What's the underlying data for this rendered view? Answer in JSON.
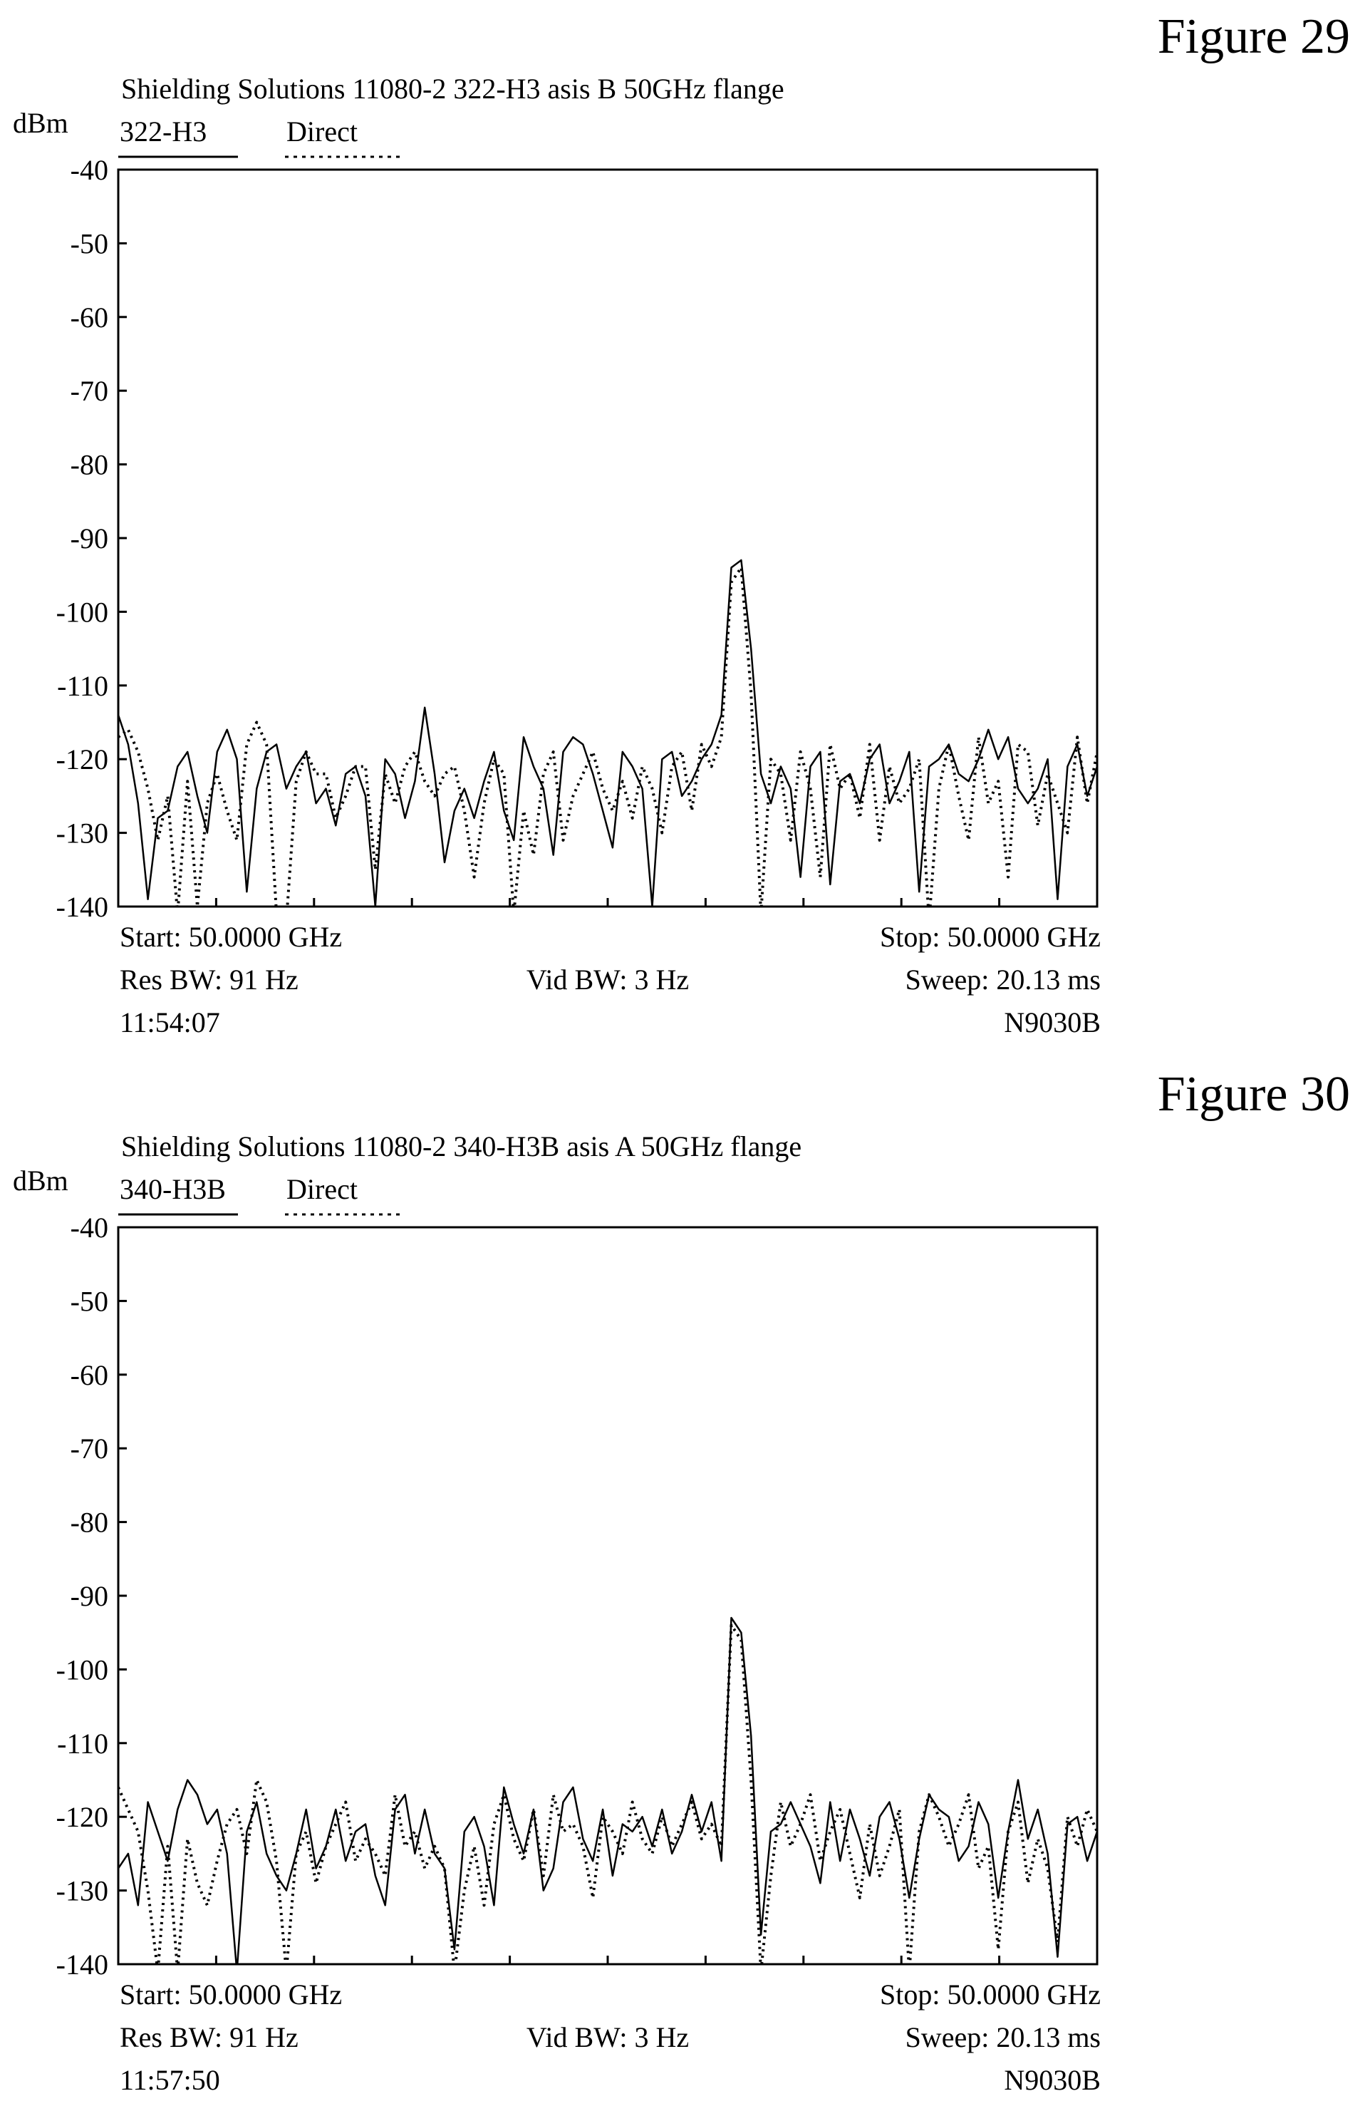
{
  "chart_data": [
    {
      "type": "line",
      "figure_label": "Figure  29",
      "title": "Shielding Solutions 11080-2  322-H3 asis B 50GHz flange",
      "ylabel": "dBm",
      "ylim": [
        -140,
        -40
      ],
      "y_ticks": [
        "-40",
        "-50",
        "-60",
        "-70",
        "-80",
        "-90",
        "-100",
        "-110",
        "-120",
        "-130",
        "-140"
      ],
      "grid": false,
      "legend_position": "top-left",
      "x_points": 100,
      "series": [
        {
          "name": "322-H3",
          "style": "solid",
          "values": [
            -114,
            -118,
            -126,
            -139,
            -128,
            -127,
            -121,
            -119,
            -125,
            -130,
            -119,
            -116,
            -120,
            -138,
            -124,
            -119,
            -118,
            -124,
            -121,
            -119,
            -126,
            -124,
            -129,
            -122,
            -121,
            -125,
            -140,
            -120,
            -122,
            -128,
            -123,
            -113,
            -122,
            -134,
            -127,
            -124,
            -128,
            -123,
            -119,
            -127,
            -131,
            -117,
            -121,
            -124,
            -133,
            -119,
            -117,
            -118,
            -122,
            -127,
            -132,
            -119,
            -121,
            -124,
            -140,
            -120,
            -119,
            -125,
            -123,
            -120,
            -118,
            -114,
            -94,
            -93,
            -105,
            -122,
            -126,
            -121,
            -124,
            -136,
            -121,
            -119,
            -137,
            -123,
            -122,
            -126,
            -120,
            -118,
            -126,
            -123,
            -119,
            -138,
            -121,
            -120,
            -118,
            -122,
            -123,
            -120,
            -116,
            -120,
            -117,
            -124,
            -126,
            -124,
            -120,
            -139,
            -121,
            -118,
            -125,
            -121
          ]
        },
        {
          "name": "Direct",
          "style": "dotted",
          "values": [
            -117,
            -116,
            -119,
            -124,
            -131,
            -125,
            -141,
            -123,
            -140,
            -126,
            -122,
            -127,
            -131,
            -118,
            -115,
            -118,
            -141,
            -142,
            -123,
            -119,
            -122,
            -122,
            -128,
            -125,
            -121,
            -121,
            -135,
            -122,
            -126,
            -121,
            -119,
            -123,
            -125,
            -122,
            -121,
            -127,
            -136,
            -126,
            -120,
            -122,
            -141,
            -127,
            -133,
            -122,
            -119,
            -131,
            -125,
            -122,
            -119,
            -124,
            -127,
            -123,
            -128,
            -121,
            -124,
            -130,
            -121,
            -119,
            -127,
            -118,
            -121,
            -117,
            -96,
            -94,
            -111,
            -141,
            -120,
            -122,
            -131,
            -119,
            -124,
            -136,
            -118,
            -124,
            -122,
            -128,
            -118,
            -131,
            -121,
            -126,
            -124,
            -120,
            -142,
            -124,
            -118,
            -125,
            -131,
            -117,
            -126,
            -123,
            -136,
            -118,
            -119,
            -129,
            -122,
            -126,
            -130,
            -117,
            -126,
            -119
          ]
        }
      ],
      "footer": {
        "start": "Start: 50.0000 GHz",
        "stop": "Stop: 50.0000 GHz",
        "res_bw": "Res BW: 91 Hz",
        "vid_bw": "Vid BW: 3 Hz",
        "sweep": "Sweep: 20.13 ms",
        "time": "11:54:07",
        "model": "N9030B"
      }
    },
    {
      "type": "line",
      "figure_label": "Figure  30",
      "title": "Shielding Solutions 11080-2  340-H3B asis A 50GHz flange",
      "ylabel": "dBm",
      "ylim": [
        -140,
        -40
      ],
      "y_ticks": [
        "-40",
        "-50",
        "-60",
        "-70",
        "-80",
        "-90",
        "-100",
        "-110",
        "-120",
        "-130",
        "-140"
      ],
      "grid": false,
      "legend_position": "top-left",
      "x_points": 100,
      "series": [
        {
          "name": "340-H3B",
          "style": "solid",
          "values": [
            -127,
            -125,
            -132,
            -118,
            -122,
            -126,
            -119,
            -115,
            -117,
            -121,
            -119,
            -125,
            -141,
            -122,
            -118,
            -125,
            -128,
            -130,
            -125,
            -119,
            -127,
            -124,
            -119,
            -126,
            -122,
            -121,
            -128,
            -132,
            -119,
            -117,
            -125,
            -119,
            -125,
            -127,
            -138,
            -122,
            -120,
            -124,
            -132,
            -116,
            -121,
            -125,
            -119,
            -130,
            -127,
            -118,
            -116,
            -123,
            -126,
            -119,
            -128,
            -121,
            -122,
            -120,
            -124,
            -119,
            -125,
            -122,
            -117,
            -122,
            -118,
            -126,
            -93,
            -95,
            -109,
            -136,
            -122,
            -121,
            -118,
            -121,
            -124,
            -129,
            -118,
            -126,
            -119,
            -123,
            -128,
            -120,
            -118,
            -123,
            -131,
            -123,
            -117,
            -119,
            -120,
            -126,
            -124,
            -118,
            -121,
            -131,
            -122,
            -115,
            -123,
            -119,
            -125,
            -139,
            -121,
            -120,
            -126,
            -122
          ]
        },
        {
          "name": "Direct",
          "style": "dotted",
          "values": [
            -116,
            -119,
            -122,
            -130,
            -141,
            -124,
            -141,
            -123,
            -129,
            -132,
            -126,
            -121,
            -119,
            -125,
            -115,
            -118,
            -126,
            -141,
            -125,
            -122,
            -129,
            -124,
            -121,
            -118,
            -126,
            -123,
            -125,
            -128,
            -117,
            -124,
            -122,
            -127,
            -124,
            -127,
            -141,
            -130,
            -124,
            -132,
            -121,
            -117,
            -123,
            -126,
            -119,
            -128,
            -117,
            -122,
            -121,
            -124,
            -131,
            -120,
            -122,
            -125,
            -118,
            -123,
            -125,
            -120,
            -124,
            -121,
            -118,
            -123,
            -121,
            -124,
            -94,
            -96,
            -115,
            -141,
            -128,
            -118,
            -124,
            -121,
            -117,
            -126,
            -122,
            -119,
            -125,
            -131,
            -121,
            -128,
            -124,
            -119,
            -141,
            -122,
            -117,
            -120,
            -124,
            -121,
            -117,
            -127,
            -124,
            -138,
            -122,
            -118,
            -129,
            -123,
            -127,
            -137,
            -120,
            -124,
            -119,
            -122
          ]
        }
      ],
      "footer": {
        "start": "Start: 50.0000 GHz",
        "stop": "Stop: 50.0000 GHz",
        "res_bw": "Res BW: 91 Hz",
        "vid_bw": "Vid BW: 3 Hz",
        "sweep": "Sweep: 20.13 ms",
        "time": "11:57:50",
        "model": "N9030B"
      }
    }
  ]
}
